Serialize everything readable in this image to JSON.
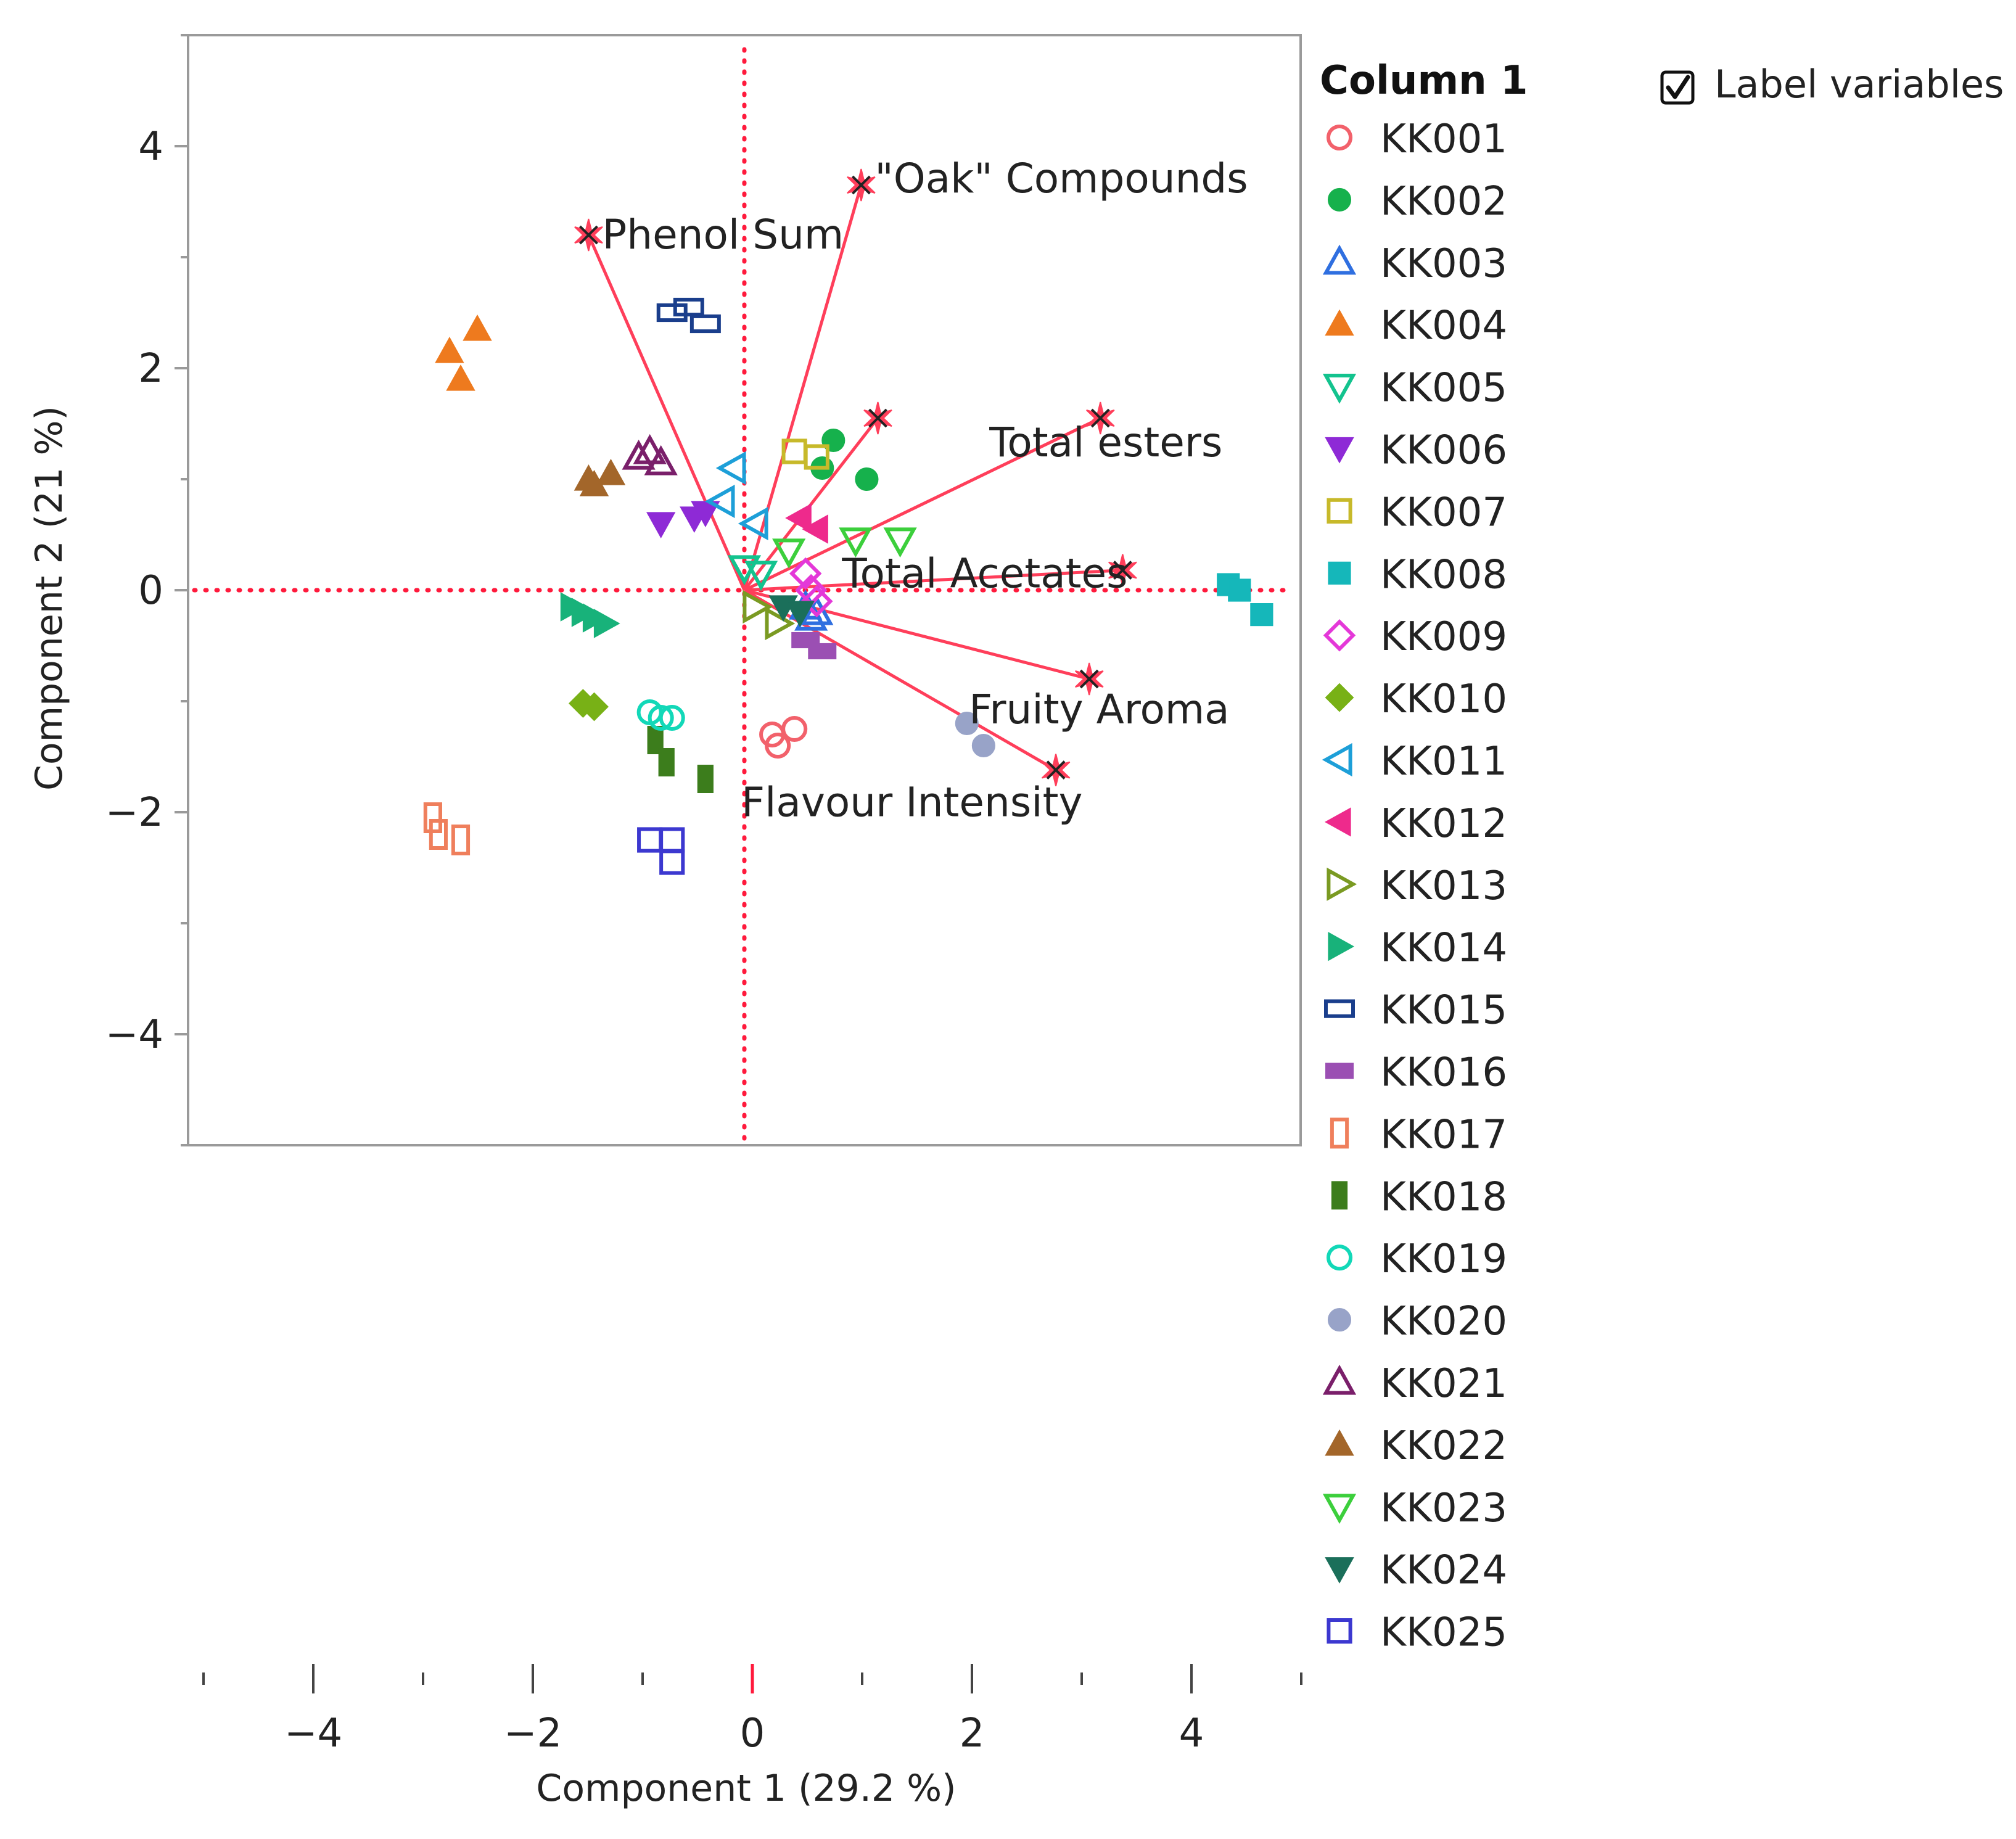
{
  "chart_data": {
    "type": "scatter",
    "subtype": "pca-biplot",
    "xlabel": "Component 1  (29.2 %)",
    "ylabel": "Component 2  (21 %)",
    "xlim": [
      -5,
      5
    ],
    "ylim": [
      -5,
      5
    ],
    "xticks": [
      -4,
      -2,
      0,
      2,
      4
    ],
    "yticks": [
      -4,
      -2,
      0,
      2,
      4
    ],
    "xtick_labels": [
      "−4",
      "−2",
      "0",
      "2",
      "4"
    ],
    "ytick_labels": [
      "4",
      "2",
      "0",
      "−2",
      "−4"
    ],
    "reference_lines": {
      "x": 0,
      "y": 0,
      "color": "#ff1a3c",
      "style": "dotted"
    },
    "legend": {
      "title": "Column 1",
      "placement": "right"
    },
    "loading_color": "#ff3e5a",
    "loadings": [
      {
        "name": "\"Oak\" Compounds",
        "x": 1.05,
        "y": 3.65
      },
      {
        "name": "Phenol Sum",
        "x": -1.4,
        "y": 3.2
      },
      {
        "name": "Total esters",
        "x": 3.2,
        "y": 1.55
      },
      {
        "name": "Total Acetates",
        "x": 3.4,
        "y": 0.18
      },
      {
        "name": "Fruity Aroma",
        "x": 3.1,
        "y": -0.8
      },
      {
        "name": "Flavour Intensity",
        "x": 2.8,
        "y": -1.62
      },
      {
        "name": "",
        "x": 1.2,
        "y": 1.55
      }
    ],
    "series": [
      {
        "name": "KK001",
        "color": "#f2616b",
        "marker": "circle",
        "filled": false,
        "x": [
          0.25,
          0.3,
          0.45
        ],
        "y": [
          -1.3,
          -1.4,
          -1.25
        ]
      },
      {
        "name": "KK002",
        "color": "#16b14c",
        "marker": "circle",
        "filled": true,
        "x": [
          0.8,
          0.7,
          1.1
        ],
        "y": [
          1.35,
          1.1,
          1.0
        ]
      },
      {
        "name": "KK003",
        "color": "#2f6fe0",
        "marker": "triangle-up",
        "filled": false,
        "x": [
          0.55,
          0.6,
          0.65
        ],
        "y": [
          -0.15,
          -0.25,
          -0.2
        ]
      },
      {
        "name": "KK004",
        "color": "#ee7a1e",
        "marker": "triangle-up",
        "filled": true,
        "x": [
          -2.4,
          -2.65,
          -2.55
        ],
        "y": [
          2.35,
          2.15,
          1.9
        ]
      },
      {
        "name": "KK005",
        "color": "#13c38e",
        "marker": "triangle-down",
        "filled": false,
        "x": [
          0.0,
          0.15
        ],
        "y": [
          0.2,
          0.15
        ]
      },
      {
        "name": "KK006",
        "color": "#8e2ad6",
        "marker": "triangle-down",
        "filled": true,
        "x": [
          -0.75,
          -0.45,
          -0.35
        ],
        "y": [
          0.6,
          0.65,
          0.7
        ]
      },
      {
        "name": "KK007",
        "color": "#c7b92a",
        "marker": "square",
        "filled": false,
        "x": [
          0.45,
          0.65
        ],
        "y": [
          1.25,
          1.2
        ]
      },
      {
        "name": "KK008",
        "color": "#15b7ba",
        "marker": "square",
        "filled": true,
        "x": [
          4.35,
          4.45,
          4.65
        ],
        "y": [
          0.05,
          0.0,
          -0.22
        ]
      },
      {
        "name": "KK009",
        "color": "#e438d8",
        "marker": "diamond",
        "filled": false,
        "x": [
          0.55,
          0.6,
          0.65
        ],
        "y": [
          0.15,
          0.0,
          -0.1
        ]
      },
      {
        "name": "KK010",
        "color": "#78b116",
        "marker": "diamond",
        "filled": true,
        "x": [
          -1.45,
          -1.35
        ],
        "y": [
          -1.02,
          -1.05
        ]
      },
      {
        "name": "KK011",
        "color": "#1d9fd8",
        "marker": "triangle-left",
        "filled": false,
        "x": [
          -0.1,
          -0.2,
          0.1
        ],
        "y": [
          1.1,
          0.8,
          0.6
        ]
      },
      {
        "name": "KK012",
        "color": "#ee2a8c",
        "marker": "triangle-left",
        "filled": true,
        "x": [
          0.5,
          0.65
        ],
        "y": [
          0.65,
          0.55
        ]
      },
      {
        "name": "KK013",
        "color": "#7a9a22",
        "marker": "triangle-right",
        "filled": false,
        "x": [
          0.1,
          0.3
        ],
        "y": [
          -0.15,
          -0.3
        ]
      },
      {
        "name": "KK014",
        "color": "#18b27a",
        "marker": "triangle-right",
        "filled": true,
        "x": [
          -1.55,
          -1.45,
          -1.35,
          -1.25
        ],
        "y": [
          -0.15,
          -0.2,
          -0.25,
          -0.3
        ]
      },
      {
        "name": "KK015",
        "color": "#1a3e8c",
        "marker": "rect",
        "filled": false,
        "x": [
          -0.65,
          -0.5,
          -0.35
        ],
        "y": [
          2.5,
          2.55,
          2.4
        ]
      },
      {
        "name": "KK016",
        "color": "#9b4fb3",
        "marker": "rect",
        "filled": true,
        "x": [
          0.55,
          0.7
        ],
        "y": [
          -0.45,
          -0.55
        ]
      },
      {
        "name": "KK017",
        "color": "#ef7f5c",
        "marker": "rect-tall",
        "filled": false,
        "x": [
          -2.8,
          -2.75,
          -2.55
        ],
        "y": [
          -2.05,
          -2.2,
          -2.25
        ]
      },
      {
        "name": "KK018",
        "color": "#3c7d1c",
        "marker": "rect-tall",
        "filled": true,
        "x": [
          -0.8,
          -0.7,
          -0.35
        ],
        "y": [
          -1.35,
          -1.55,
          -1.7
        ]
      },
      {
        "name": "KK019",
        "color": "#12d8b8",
        "marker": "circle",
        "filled": false,
        "x": [
          -0.85,
          -0.75,
          -0.65
        ],
        "y": [
          -1.1,
          -1.15,
          -1.15
        ]
      },
      {
        "name": "KK020",
        "color": "#98a3c8",
        "marker": "circle",
        "filled": true,
        "x": [
          2.0,
          2.15
        ],
        "y": [
          -1.2,
          -1.4
        ]
      },
      {
        "name": "KK021",
        "color": "#7a1f6a",
        "marker": "triangle-up",
        "filled": false,
        "x": [
          -0.95,
          -0.85,
          -0.75
        ],
        "y": [
          1.2,
          1.25,
          1.15
        ]
      },
      {
        "name": "KK022",
        "color": "#a3662a",
        "marker": "triangle-up",
        "filled": true,
        "x": [
          -1.4,
          -1.35,
          -1.2
        ],
        "y": [
          1.0,
          0.95,
          1.05
        ]
      },
      {
        "name": "KK023",
        "color": "#3ccf3c",
        "marker": "triangle-down",
        "filled": false,
        "x": [
          0.4,
          1.0,
          1.4
        ],
        "y": [
          0.35,
          0.45,
          0.45
        ]
      },
      {
        "name": "KK024",
        "color": "#1b6f5a",
        "marker": "triangle-down",
        "filled": true,
        "x": [
          0.35,
          0.5
        ],
        "y": [
          -0.15,
          -0.2
        ]
      },
      {
        "name": "KK025",
        "color": "#3c38d0",
        "marker": "square",
        "filled": false,
        "x": [
          -0.85,
          -0.65,
          -0.65
        ],
        "y": [
          -2.25,
          -2.25,
          -2.45
        ]
      }
    ]
  },
  "controls": {
    "label_variables": {
      "label": "Label variables",
      "checked": true
    }
  }
}
